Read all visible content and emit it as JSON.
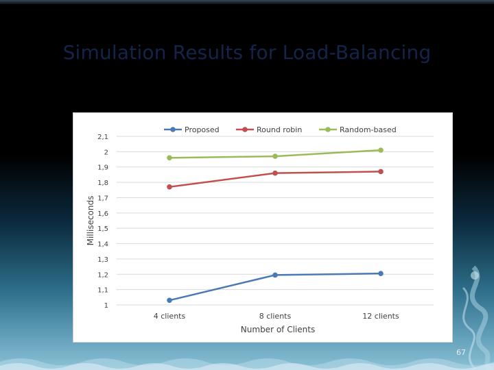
{
  "slide": {
    "title": "Simulation Results for Load-Balancing",
    "page_number": "67"
  },
  "chart_data": {
    "type": "line",
    "title": "",
    "xlabel": "Number of Clients",
    "ylabel": "Milliseconds",
    "categories": [
      "4 clients",
      "8 clients",
      "12 clients"
    ],
    "y_ticks": [
      "1",
      "1,1",
      "1,2",
      "1,3",
      "1,4",
      "1,5",
      "1,6",
      "1,7",
      "1,8",
      "1,9",
      "2",
      "2,1"
    ],
    "ylim": [
      1,
      2.1
    ],
    "legend_position": "top",
    "series": [
      {
        "name": "Proposed",
        "values": [
          1.03,
          1.195,
          1.205
        ],
        "color": "#4a7ab5"
      },
      {
        "name": "Round robin",
        "values": [
          1.77,
          1.86,
          1.87
        ],
        "color": "#c0504d"
      },
      {
        "name": "Random-based",
        "values": [
          1.96,
          1.97,
          2.01
        ],
        "color": "#9bbb59"
      }
    ]
  }
}
